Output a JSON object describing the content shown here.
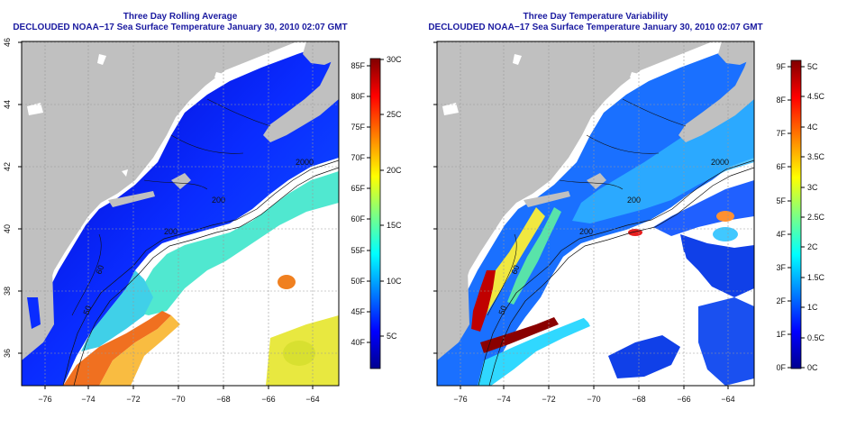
{
  "panels": [
    {
      "title": "Three Day Rolling Average",
      "subtitle": "DECLOUDED NOAA−17 Sea Surface Temperature January 30, 2010 02:07 GMT",
      "x_ticks": [
        "−76",
        "−74",
        "−72",
        "−70",
        "−68",
        "−66",
        "−64"
      ],
      "y_ticks": [
        "36",
        "38",
        "40",
        "42",
        "44",
        "46"
      ],
      "colorbar_left": [
        "40F",
        "45F",
        "50F",
        "55F",
        "60F",
        "65F",
        "70F",
        "75F",
        "80F",
        "85F"
      ],
      "colorbar_right": [
        "5C",
        "10C",
        "15C",
        "20C",
        "25C",
        "30C"
      ],
      "contour_labels": [
        "2000",
        "200",
        "200",
        "50",
        "60"
      ],
      "colors": [
        "#00008f",
        "#0000ff",
        "#0080ff",
        "#00ffff",
        "#80ff80",
        "#ffff00",
        "#ff8000",
        "#ff0000",
        "#800000"
      ]
    },
    {
      "title": "Three Day Temperature Variability",
      "subtitle": "DECLOUDED NOAA−17 Sea Surface Temperature January 30, 2010 02:07 GMT",
      "x_ticks": [
        "−76",
        "−74",
        "−72",
        "−70",
        "−68",
        "−66",
        "−64"
      ],
      "y_ticks": [
        "36",
        "38",
        "40",
        "42",
        "44",
        "46"
      ],
      "colorbar_left": [
        "0F",
        "1F",
        "2F",
        "3F",
        "4F",
        "5F",
        "6F",
        "7F",
        "8F",
        "9F"
      ],
      "colorbar_right": [
        "0C",
        "0.5C",
        "1C",
        "1.5C",
        "2C",
        "2.5C",
        "3C",
        "3.5C",
        "4C",
        "4.5C",
        "5C"
      ],
      "contour_labels": [
        "2000",
        "200",
        "200",
        "50",
        "60"
      ],
      "colors": [
        "#00008f",
        "#0000ff",
        "#0080ff",
        "#00ffff",
        "#80ff80",
        "#ffff00",
        "#ff8000",
        "#ff0000",
        "#800000"
      ]
    }
  ],
  "map": {
    "land_color": "#c0c0c0",
    "nodata_color": "#ffffff"
  }
}
